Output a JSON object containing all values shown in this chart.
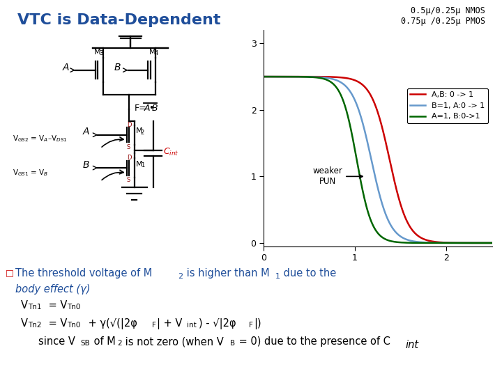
{
  "title": "VTC is Data-Dependent",
  "title_color": "#1F4E9A",
  "bg_color": "#FFFFFF",
  "plot_subtitle": "0.5μ/0.25μ NMOS\n0.75μ /0.25μ PMOS",
  "xlim": [
    0,
    2.5
  ],
  "ylim": [
    -0.05,
    3.2
  ],
  "xticks": [
    0,
    1,
    2
  ],
  "yticks": [
    0,
    1,
    2,
    3
  ],
  "curve_AB": {
    "color": "#CC0000",
    "label": "A,B: 0 -> 1",
    "v50": 1.38,
    "steepness": 10
  },
  "curve_B1": {
    "color": "#6699CC",
    "label": "B=1, A:0 -> 1",
    "v50": 1.18,
    "steepness": 10
  },
  "curve_A1": {
    "color": "#006600",
    "label": "A=1, B:0->1",
    "v50": 1.02,
    "steepness": 12
  },
  "vdd": 2.5,
  "bullet_color": "#CC0000",
  "text_color_blue": "#1F4E9A",
  "text_color_black": "#000000",
  "text_color_red": "#CC0000"
}
